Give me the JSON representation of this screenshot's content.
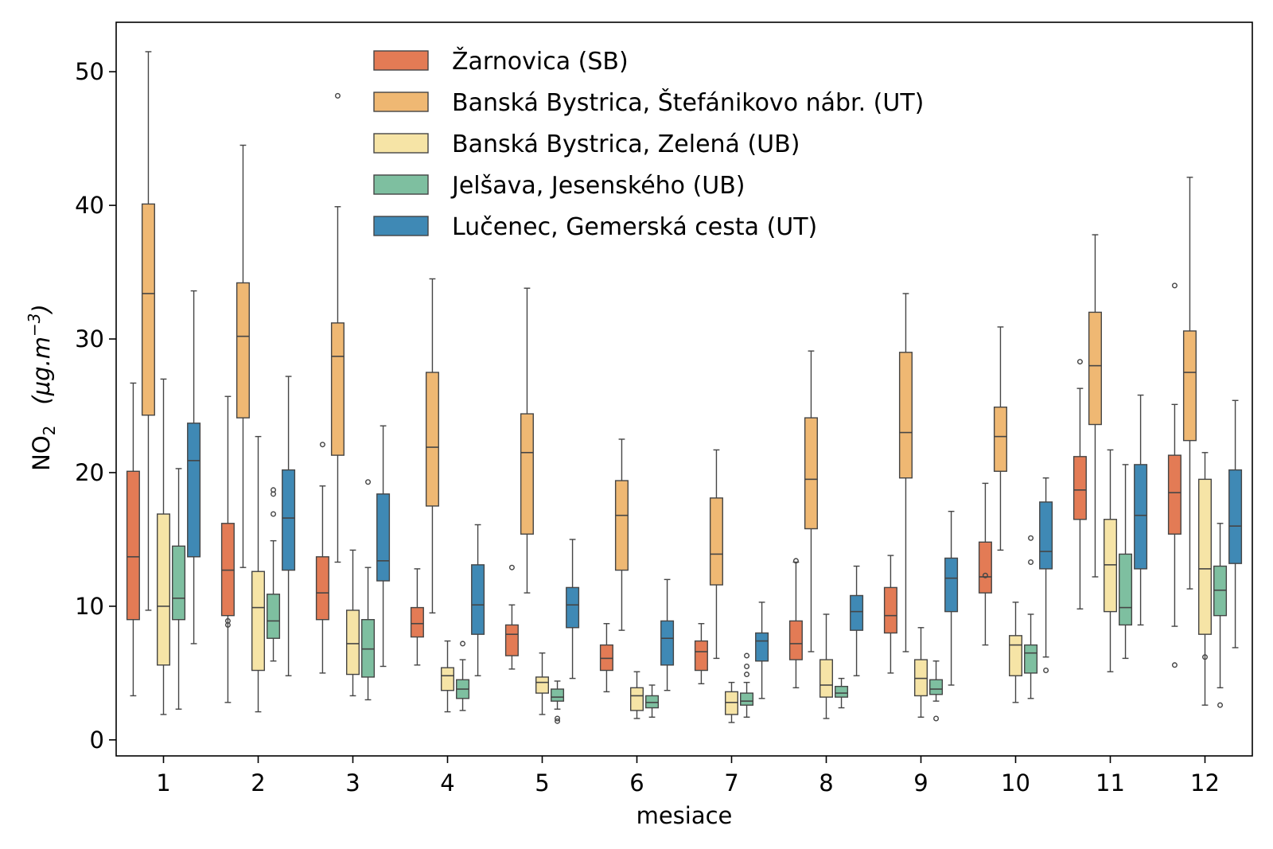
{
  "chart_data": {
    "type": "boxplot",
    "xlabel": "mesiace",
    "ylabel": {
      "main": "NO",
      "subscript": "2",
      "units_prefix": "(μg.m",
      "units_exponent": "−3",
      "units_suffix": ")"
    },
    "ylim": [
      -1.2,
      53.7
    ],
    "yticks": [
      0,
      10,
      20,
      30,
      40,
      50
    ],
    "categories": [
      "1",
      "2",
      "3",
      "4",
      "5",
      "6",
      "7",
      "8",
      "9",
      "10",
      "11",
      "12"
    ],
    "legend_position": "top-center",
    "series": [
      {
        "name": "Žarnovica (SB)",
        "color": "#e37b55",
        "boxes": [
          {
            "low": 3.3,
            "q1": 9.0,
            "median": 13.7,
            "q3": 20.1,
            "high": 26.7,
            "outliers": []
          },
          {
            "low": 2.8,
            "q1": 9.3,
            "median": 12.7,
            "q3": 16.2,
            "high": 25.7,
            "outliers": [
              8.6,
              8.9
            ]
          },
          {
            "low": 5.0,
            "q1": 9.0,
            "median": 11.0,
            "q3": 13.7,
            "high": 19.0,
            "outliers": [
              22.1
            ]
          },
          {
            "low": 5.6,
            "q1": 7.7,
            "median": 8.7,
            "q3": 9.9,
            "high": 12.8,
            "outliers": []
          },
          {
            "low": 5.3,
            "q1": 6.3,
            "median": 7.9,
            "q3": 8.6,
            "high": 10.1,
            "outliers": [
              12.9
            ]
          },
          {
            "low": 3.6,
            "q1": 5.2,
            "median": 6.1,
            "q3": 7.1,
            "high": 8.7,
            "outliers": []
          },
          {
            "low": 4.2,
            "q1": 5.2,
            "median": 6.6,
            "q3": 7.4,
            "high": 8.7,
            "outliers": []
          },
          {
            "low": 3.9,
            "q1": 6.0,
            "median": 7.2,
            "q3": 8.9,
            "high": 13.3,
            "outliers": [
              13.4
            ]
          },
          {
            "low": 5.0,
            "q1": 8.0,
            "median": 9.3,
            "q3": 11.4,
            "high": 13.8,
            "outliers": []
          },
          {
            "low": 7.1,
            "q1": 11.0,
            "median": 12.2,
            "q3": 14.8,
            "high": 19.2,
            "outliers": [
              12.3
            ]
          },
          {
            "low": 9.8,
            "q1": 16.5,
            "median": 18.7,
            "q3": 21.2,
            "high": 26.3,
            "outliers": [
              28.3
            ]
          },
          {
            "low": 8.5,
            "q1": 15.4,
            "median": 18.5,
            "q3": 21.3,
            "high": 25.1,
            "outliers": [
              34.0,
              5.6
            ]
          }
        ]
      },
      {
        "name": "Banská Bystrica, Štefánikovo nábr. (UT)",
        "color": "#efb873",
        "boxes": [
          {
            "low": 9.7,
            "q1": 24.3,
            "median": 33.4,
            "q3": 40.1,
            "high": 51.5,
            "outliers": []
          },
          {
            "low": 12.9,
            "q1": 24.1,
            "median": 30.2,
            "q3": 34.2,
            "high": 44.5,
            "outliers": []
          },
          {
            "low": 13.3,
            "q1": 21.3,
            "median": 28.7,
            "q3": 31.2,
            "high": 39.9,
            "outliers": [
              48.2
            ]
          },
          {
            "low": 9.5,
            "q1": 17.5,
            "median": 21.9,
            "q3": 27.5,
            "high": 34.5,
            "outliers": []
          },
          {
            "low": 11.0,
            "q1": 15.4,
            "median": 21.5,
            "q3": 24.4,
            "high": 33.8,
            "outliers": []
          },
          {
            "low": 8.2,
            "q1": 12.7,
            "median": 16.8,
            "q3": 19.4,
            "high": 22.5,
            "outliers": []
          },
          {
            "low": 6.1,
            "q1": 11.6,
            "median": 13.9,
            "q3": 18.1,
            "high": 21.7,
            "outliers": []
          },
          {
            "low": 6.6,
            "q1": 15.8,
            "median": 19.5,
            "q3": 24.1,
            "high": 29.1,
            "outliers": []
          },
          {
            "low": 6.6,
            "q1": 19.6,
            "median": 23.0,
            "q3": 29.0,
            "high": 33.4,
            "outliers": []
          },
          {
            "low": 14.2,
            "q1": 20.1,
            "median": 22.7,
            "q3": 24.9,
            "high": 30.9,
            "outliers": []
          },
          {
            "low": 12.2,
            "q1": 23.6,
            "median": 28.0,
            "q3": 32.0,
            "high": 37.8,
            "outliers": []
          },
          {
            "low": 11.3,
            "q1": 22.4,
            "median": 27.5,
            "q3": 30.6,
            "high": 42.1,
            "outliers": []
          }
        ]
      },
      {
        "name": "Banská Bystrica, Zelená (UB)",
        "color": "#f6e4a6",
        "boxes": [
          {
            "low": 1.9,
            "q1": 5.6,
            "median": 10.0,
            "q3": 16.9,
            "high": 27.0,
            "outliers": []
          },
          {
            "low": 2.1,
            "q1": 5.2,
            "median": 9.9,
            "q3": 12.6,
            "high": 22.7,
            "outliers": []
          },
          {
            "low": 3.3,
            "q1": 4.9,
            "median": 7.2,
            "q3": 9.7,
            "high": 14.2,
            "outliers": []
          },
          {
            "low": 2.1,
            "q1": 3.7,
            "median": 4.8,
            "q3": 5.4,
            "high": 7.4,
            "outliers": []
          },
          {
            "low": 1.9,
            "q1": 3.5,
            "median": 4.3,
            "q3": 4.7,
            "high": 6.5,
            "outliers": []
          },
          {
            "low": 1.6,
            "q1": 2.2,
            "median": 3.3,
            "q3": 3.9,
            "high": 5.1,
            "outliers": []
          },
          {
            "low": 1.3,
            "q1": 1.9,
            "median": 2.8,
            "q3": 3.6,
            "high": 4.3,
            "outliers": []
          },
          {
            "low": 1.6,
            "q1": 3.2,
            "median": 4.1,
            "q3": 6.0,
            "high": 9.4,
            "outliers": []
          },
          {
            "low": 1.7,
            "q1": 3.3,
            "median": 4.6,
            "q3": 6.0,
            "high": 8.4,
            "outliers": []
          },
          {
            "low": 2.8,
            "q1": 4.8,
            "median": 7.1,
            "q3": 7.8,
            "high": 10.3,
            "outliers": []
          },
          {
            "low": 5.1,
            "q1": 9.6,
            "median": 13.1,
            "q3": 16.5,
            "high": 21.7,
            "outliers": []
          },
          {
            "low": 2.6,
            "q1": 7.9,
            "median": 12.8,
            "q3": 19.5,
            "high": 21.5,
            "outliers": [
              6.2
            ]
          }
        ]
      },
      {
        "name": "Jelšava, Jesenského (UB)",
        "color": "#7ebfa0",
        "boxes": [
          {
            "low": 2.3,
            "q1": 9.0,
            "median": 10.6,
            "q3": 14.5,
            "high": 20.3,
            "outliers": []
          },
          {
            "low": 5.9,
            "q1": 7.6,
            "median": 8.9,
            "q3": 10.9,
            "high": 14.9,
            "outliers": [
              16.9,
              18.4,
              18.7
            ]
          },
          {
            "low": 3.0,
            "q1": 4.7,
            "median": 6.8,
            "q3": 9.0,
            "high": 12.9,
            "outliers": [
              19.3
            ]
          },
          {
            "low": 2.2,
            "q1": 3.1,
            "median": 3.8,
            "q3": 4.5,
            "high": 6.0,
            "outliers": [
              7.2
            ]
          },
          {
            "low": 2.3,
            "q1": 2.9,
            "median": 3.2,
            "q3": 3.8,
            "high": 4.4,
            "outliers": [
              1.4,
              1.6
            ]
          },
          {
            "low": 1.7,
            "q1": 2.4,
            "median": 2.8,
            "q3": 3.3,
            "high": 4.1,
            "outliers": []
          },
          {
            "low": 1.7,
            "q1": 2.6,
            "median": 2.9,
            "q3": 3.5,
            "high": 4.3,
            "outliers": [
              4.9,
              5.5,
              6.3
            ]
          },
          {
            "low": 2.4,
            "q1": 3.2,
            "median": 3.5,
            "q3": 4.0,
            "high": 4.6,
            "outliers": []
          },
          {
            "low": 2.9,
            "q1": 3.4,
            "median": 3.8,
            "q3": 4.5,
            "high": 5.9,
            "outliers": [
              1.6
            ]
          },
          {
            "low": 3.1,
            "q1": 5.0,
            "median": 6.5,
            "q3": 7.1,
            "high": 9.4,
            "outliers": [
              13.3,
              15.1
            ]
          },
          {
            "low": 6.1,
            "q1": 8.6,
            "median": 9.9,
            "q3": 13.9,
            "high": 20.6,
            "outliers": []
          },
          {
            "low": 3.9,
            "q1": 9.3,
            "median": 11.2,
            "q3": 13.0,
            "high": 16.2,
            "outliers": [
              2.6
            ]
          }
        ]
      },
      {
        "name": "Lučenec, Gemerská cesta (UT)",
        "color": "#3f89b5",
        "boxes": [
          {
            "low": 7.2,
            "q1": 13.7,
            "median": 20.9,
            "q3": 23.7,
            "high": 33.6,
            "outliers": []
          },
          {
            "low": 4.8,
            "q1": 12.7,
            "median": 16.6,
            "q3": 20.2,
            "high": 27.2,
            "outliers": []
          },
          {
            "low": 5.5,
            "q1": 11.9,
            "median": 13.4,
            "q3": 18.4,
            "high": 23.5,
            "outliers": []
          },
          {
            "low": 4.8,
            "q1": 7.9,
            "median": 10.1,
            "q3": 13.1,
            "high": 16.1,
            "outliers": []
          },
          {
            "low": 4.6,
            "q1": 8.4,
            "median": 10.1,
            "q3": 11.4,
            "high": 15.0,
            "outliers": []
          },
          {
            "low": 3.7,
            "q1": 5.6,
            "median": 7.6,
            "q3": 8.9,
            "high": 12.0,
            "outliers": []
          },
          {
            "low": 3.1,
            "q1": 5.9,
            "median": 7.4,
            "q3": 8.0,
            "high": 10.3,
            "outliers": []
          },
          {
            "low": 4.8,
            "q1": 8.2,
            "median": 9.6,
            "q3": 10.8,
            "high": 13.0,
            "outliers": []
          },
          {
            "low": 4.1,
            "q1": 9.6,
            "median": 12.1,
            "q3": 13.6,
            "high": 17.1,
            "outliers": []
          },
          {
            "low": 6.2,
            "q1": 12.8,
            "median": 14.1,
            "q3": 17.8,
            "high": 19.6,
            "outliers": [
              5.2
            ]
          },
          {
            "low": 8.6,
            "q1": 12.8,
            "median": 16.8,
            "q3": 20.6,
            "high": 25.8,
            "outliers": []
          },
          {
            "low": 6.9,
            "q1": 13.2,
            "median": 16.0,
            "q3": 20.2,
            "high": 25.4,
            "outliers": []
          }
        ]
      }
    ]
  }
}
